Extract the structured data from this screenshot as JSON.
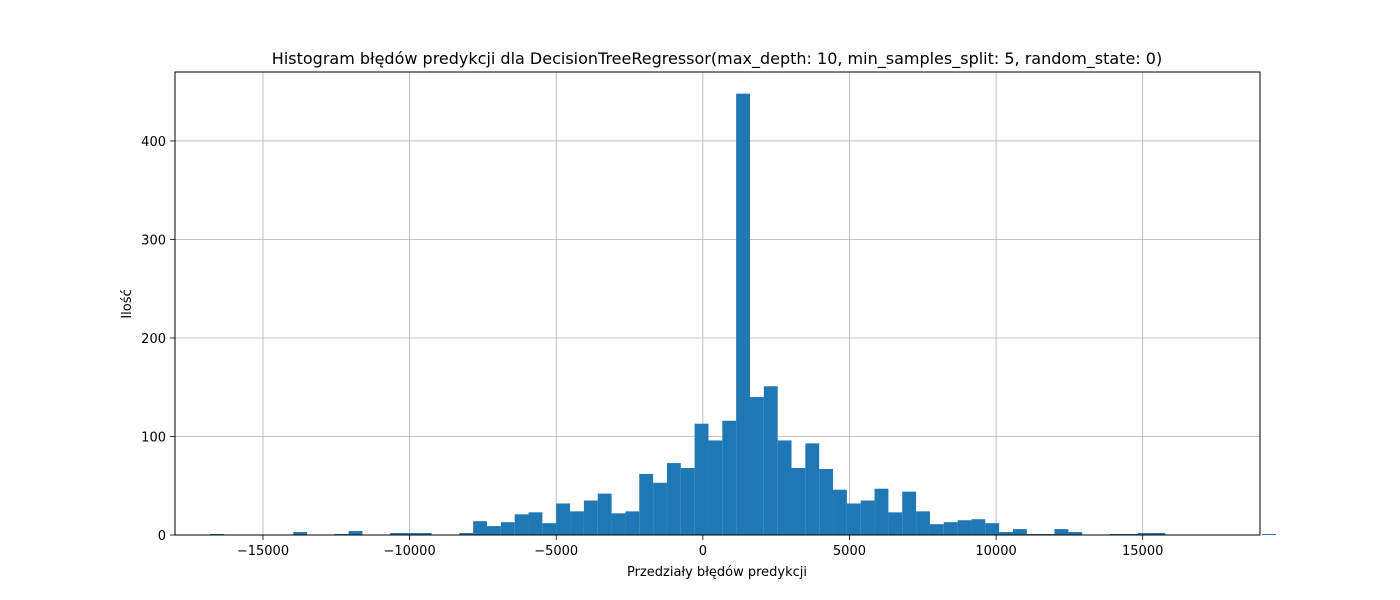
{
  "chart_data": {
    "type": "bar",
    "title": "Histogram błędów predykcji dla DecisionTreeRegressor(max_depth: 10, min_samples_split: 5, random_state: 0)",
    "xlabel": "Przedziały błędów predykcji",
    "ylabel": "Ilość",
    "xlim": [
      -18000,
      19000
    ],
    "ylim": [
      0,
      470
    ],
    "xticks": [
      -15000,
      -10000,
      -5000,
      0,
      5000,
      10000,
      15000
    ],
    "xtick_labels": [
      "−15000",
      "−10000",
      "−5000",
      "0",
      "5000",
      "10000",
      "15000"
    ],
    "yticks": [
      0,
      100,
      200,
      300,
      400
    ],
    "ytick_labels": [
      "0",
      "100",
      "200",
      "300",
      "400"
    ],
    "grid": true,
    "bar_color": "#1f77b4",
    "bin_edges_start": -16800,
    "bin_width": 472,
    "counts": [
      1,
      0,
      0,
      0,
      0,
      0,
      3,
      0,
      0,
      1,
      4,
      0,
      0,
      2,
      2,
      2,
      0,
      0,
      2,
      14,
      9,
      13,
      21,
      23,
      12,
      32,
      24,
      35,
      42,
      22,
      24,
      62,
      53,
      73,
      68,
      113,
      96,
      116,
      448,
      140,
      151,
      96,
      68,
      93,
      67,
      46,
      32,
      35,
      47,
      23,
      44,
      24,
      11,
      13,
      15,
      16,
      12,
      3,
      6,
      1,
      1,
      6,
      3,
      0,
      0,
      1,
      1,
      2,
      2,
      0,
      0,
      0,
      0,
      0,
      0,
      0,
      1
    ]
  }
}
